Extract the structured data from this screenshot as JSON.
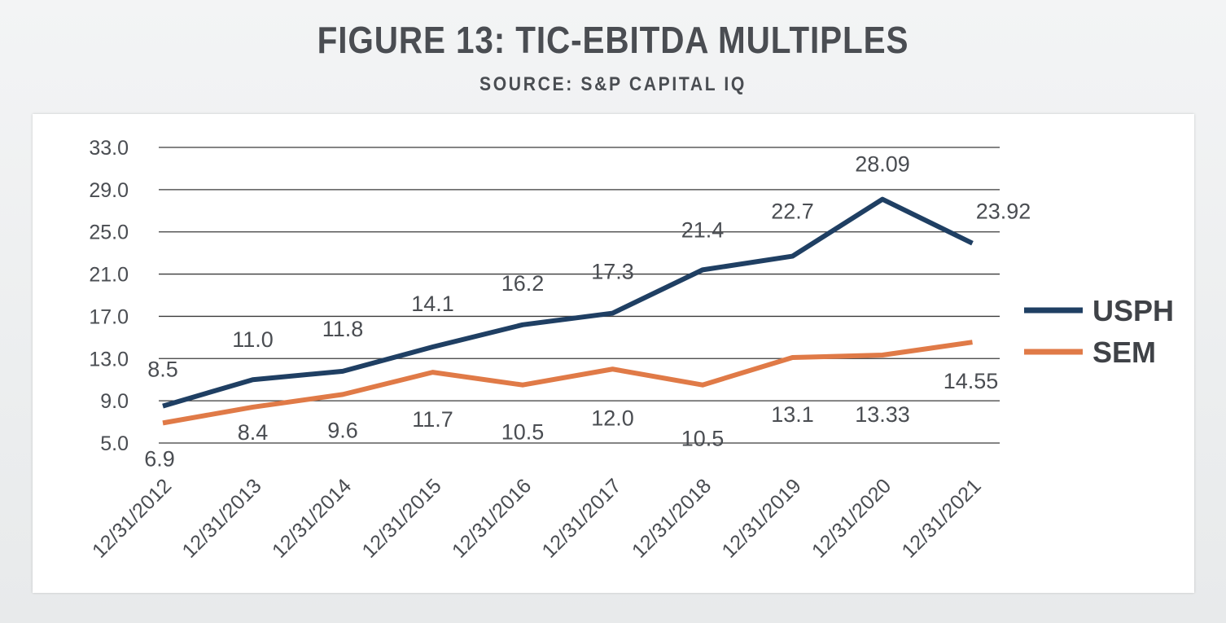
{
  "title": "FIGURE 13: TIC-EBITDA MULTIPLES",
  "subtitle": "SOURCE: S&P CAPITAL IQ",
  "chart_data": {
    "type": "line",
    "title": "FIGURE 13: TIC-EBITDA MULTIPLES",
    "subtitle": "SOURCE: S&P CAPITAL IQ",
    "x": [
      "12/31/2012",
      "12/31/2013",
      "12/31/2014",
      "12/31/2015",
      "12/31/2016",
      "12/31/2017",
      "12/31/2018",
      "12/31/2019",
      "12/31/2020",
      "12/31/2021"
    ],
    "y_ticks": [
      "5.0",
      "9.0",
      "13.0",
      "17.0",
      "21.0",
      "25.0",
      "29.0",
      "33.0"
    ],
    "ylim": [
      5,
      33
    ],
    "grid": true,
    "legend_position": "right",
    "series": [
      {
        "name": "USPH",
        "color": "#1f3f63",
        "values": [
          8.5,
          11.0,
          11.8,
          14.1,
          16.2,
          17.3,
          21.4,
          22.7,
          28.09,
          23.92
        ],
        "labels": [
          "8.5",
          "11.0",
          "11.8",
          "14.1",
          "16.2",
          "17.3",
          "21.4",
          "22.7",
          "28.09",
          "23.92"
        ]
      },
      {
        "name": "SEM",
        "color": "#e07a47",
        "values": [
          6.9,
          8.4,
          9.6,
          11.7,
          10.5,
          12.0,
          10.5,
          13.1,
          13.33,
          14.55
        ],
        "labels": [
          "6.9",
          "8.4",
          "9.6",
          "11.7",
          "10.5",
          "12.0",
          "10.5",
          "13.1",
          "13.33",
          "14.55"
        ]
      }
    ]
  }
}
